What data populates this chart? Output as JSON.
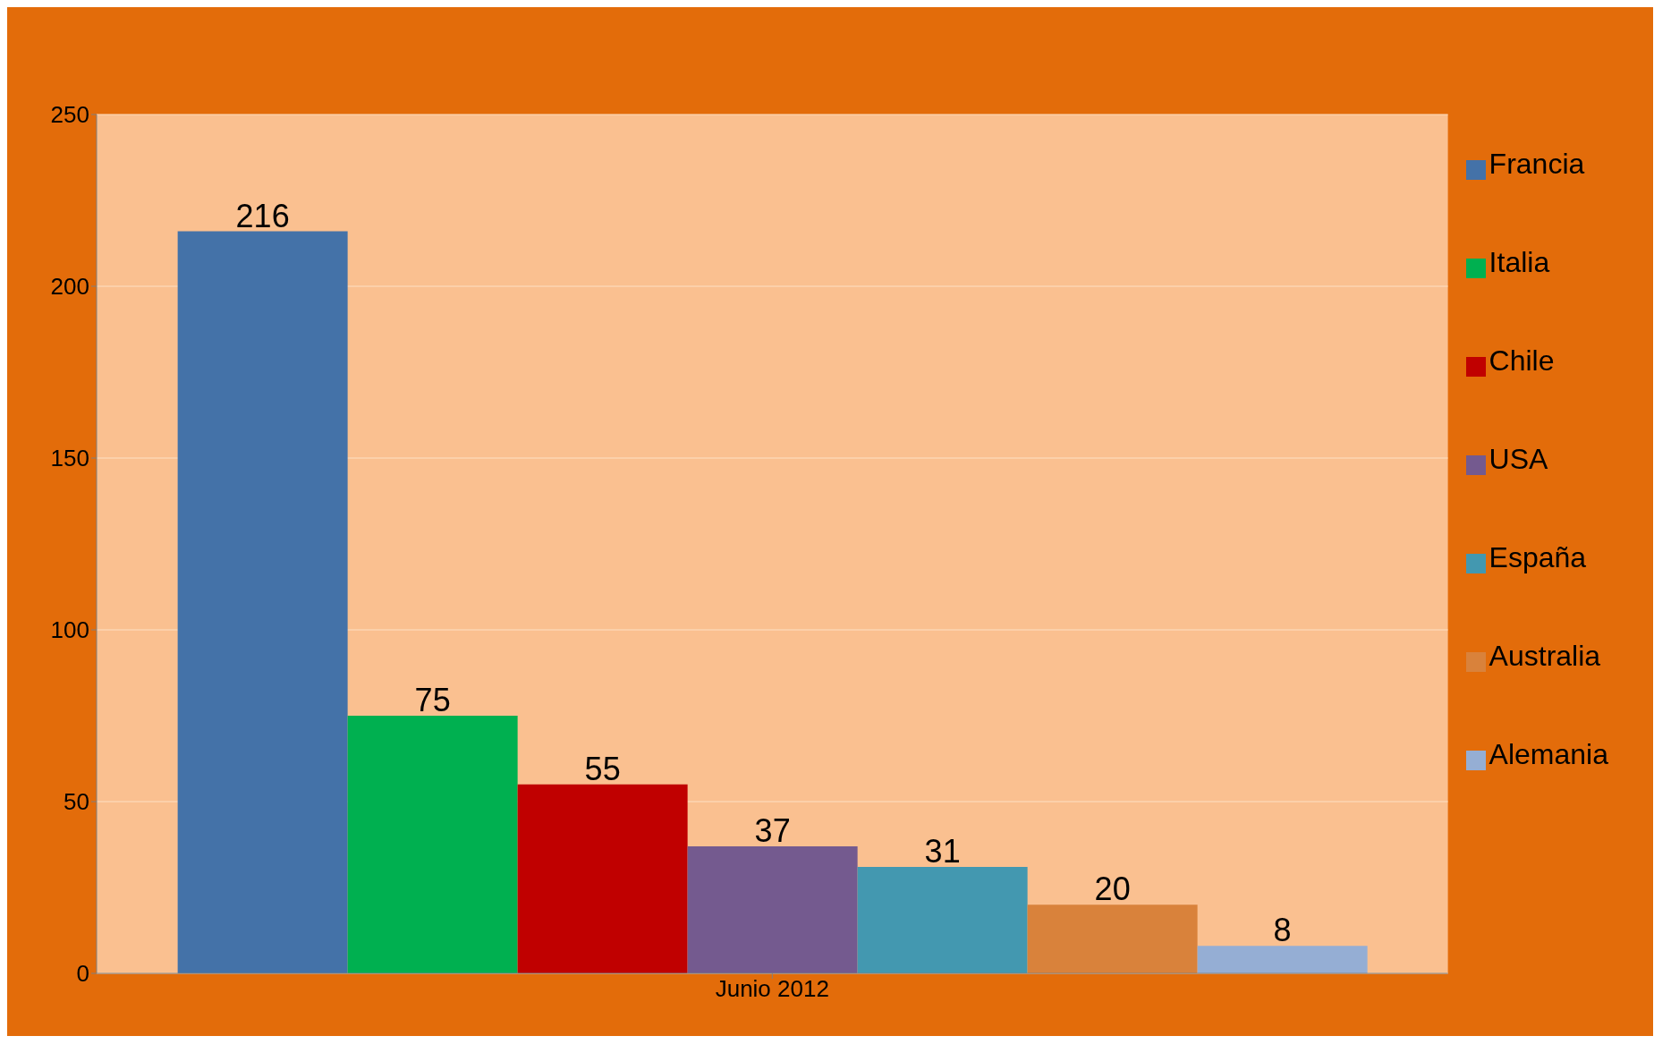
{
  "chart_data": {
    "type": "bar",
    "categories": [
      "Junio 2012"
    ],
    "series": [
      {
        "name": "Francia",
        "color": "#4472a8",
        "values": [
          216
        ]
      },
      {
        "name": "Italia",
        "color": "#00b050",
        "values": [
          75
        ]
      },
      {
        "name": "Chile",
        "color": "#c00000",
        "values": [
          55
        ]
      },
      {
        "name": "USA",
        "color": "#745a8f",
        "values": [
          37
        ]
      },
      {
        "name": "España",
        "color": "#4398b0",
        "values": [
          31
        ]
      },
      {
        "name": "Australia",
        "color": "#d9823b",
        "values": [
          20
        ]
      },
      {
        "name": "Alemania",
        "color": "#95aed4",
        "values": [
          8
        ]
      }
    ],
    "ylim": [
      0,
      250
    ],
    "yticks": [
      0,
      50,
      100,
      150,
      200,
      250
    ],
    "grid": "y",
    "legend": "right",
    "data_labels": true
  }
}
